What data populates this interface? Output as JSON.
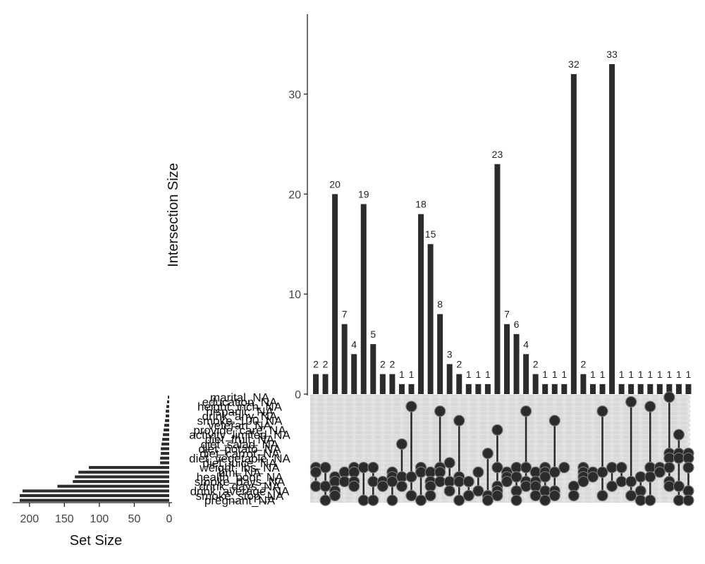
{
  "chart_data": {
    "type": "bar",
    "kind": "upset",
    "ylabel": "Intersection Size",
    "xlabel_sets": "Set Size",
    "ylim": [
      0,
      38
    ],
    "yticks": [
      0,
      10,
      20,
      30
    ],
    "intersection_values": [
      2,
      2,
      20,
      7,
      4,
      19,
      5,
      2,
      2,
      1,
      1,
      18,
      15,
      8,
      3,
      2,
      1,
      1,
      1,
      23,
      7,
      6,
      4,
      2,
      1,
      1,
      1,
      32,
      2,
      1,
      1,
      33,
      1,
      1,
      1,
      1,
      1,
      1,
      1,
      1
    ],
    "sets": [
      "marital_NA",
      "education_NA",
      "height_inch_NA",
      "hispanic_NA",
      "drink_any_NA",
      "smoke_100_NA",
      "veteran_NA",
      "provide_care_NA",
      "activity_limited_NA",
      "diet_fruit_NA",
      "diet_salad_NA",
      "diet_potato_NA",
      "diet_carrot_NA",
      "diet_vegetable_NA",
      "diet_juice_NA",
      "weight_lbs_NA",
      "bmi_NA",
      "health_poor_NA",
      "smoke_days_NA",
      "drink_days_NA",
      "drink_average_NA",
      "smoke_stop_NA",
      "pregnant_NA"
    ],
    "set_sizes": [
      2,
      3,
      4,
      5,
      5,
      6,
      7,
      8,
      9,
      10,
      11,
      12,
      12,
      13,
      13,
      115,
      130,
      135,
      138,
      160,
      210,
      214,
      214
    ],
    "set_size_ticks": [
      200,
      150,
      100,
      50,
      0
    ],
    "set_size_max": 220
  }
}
